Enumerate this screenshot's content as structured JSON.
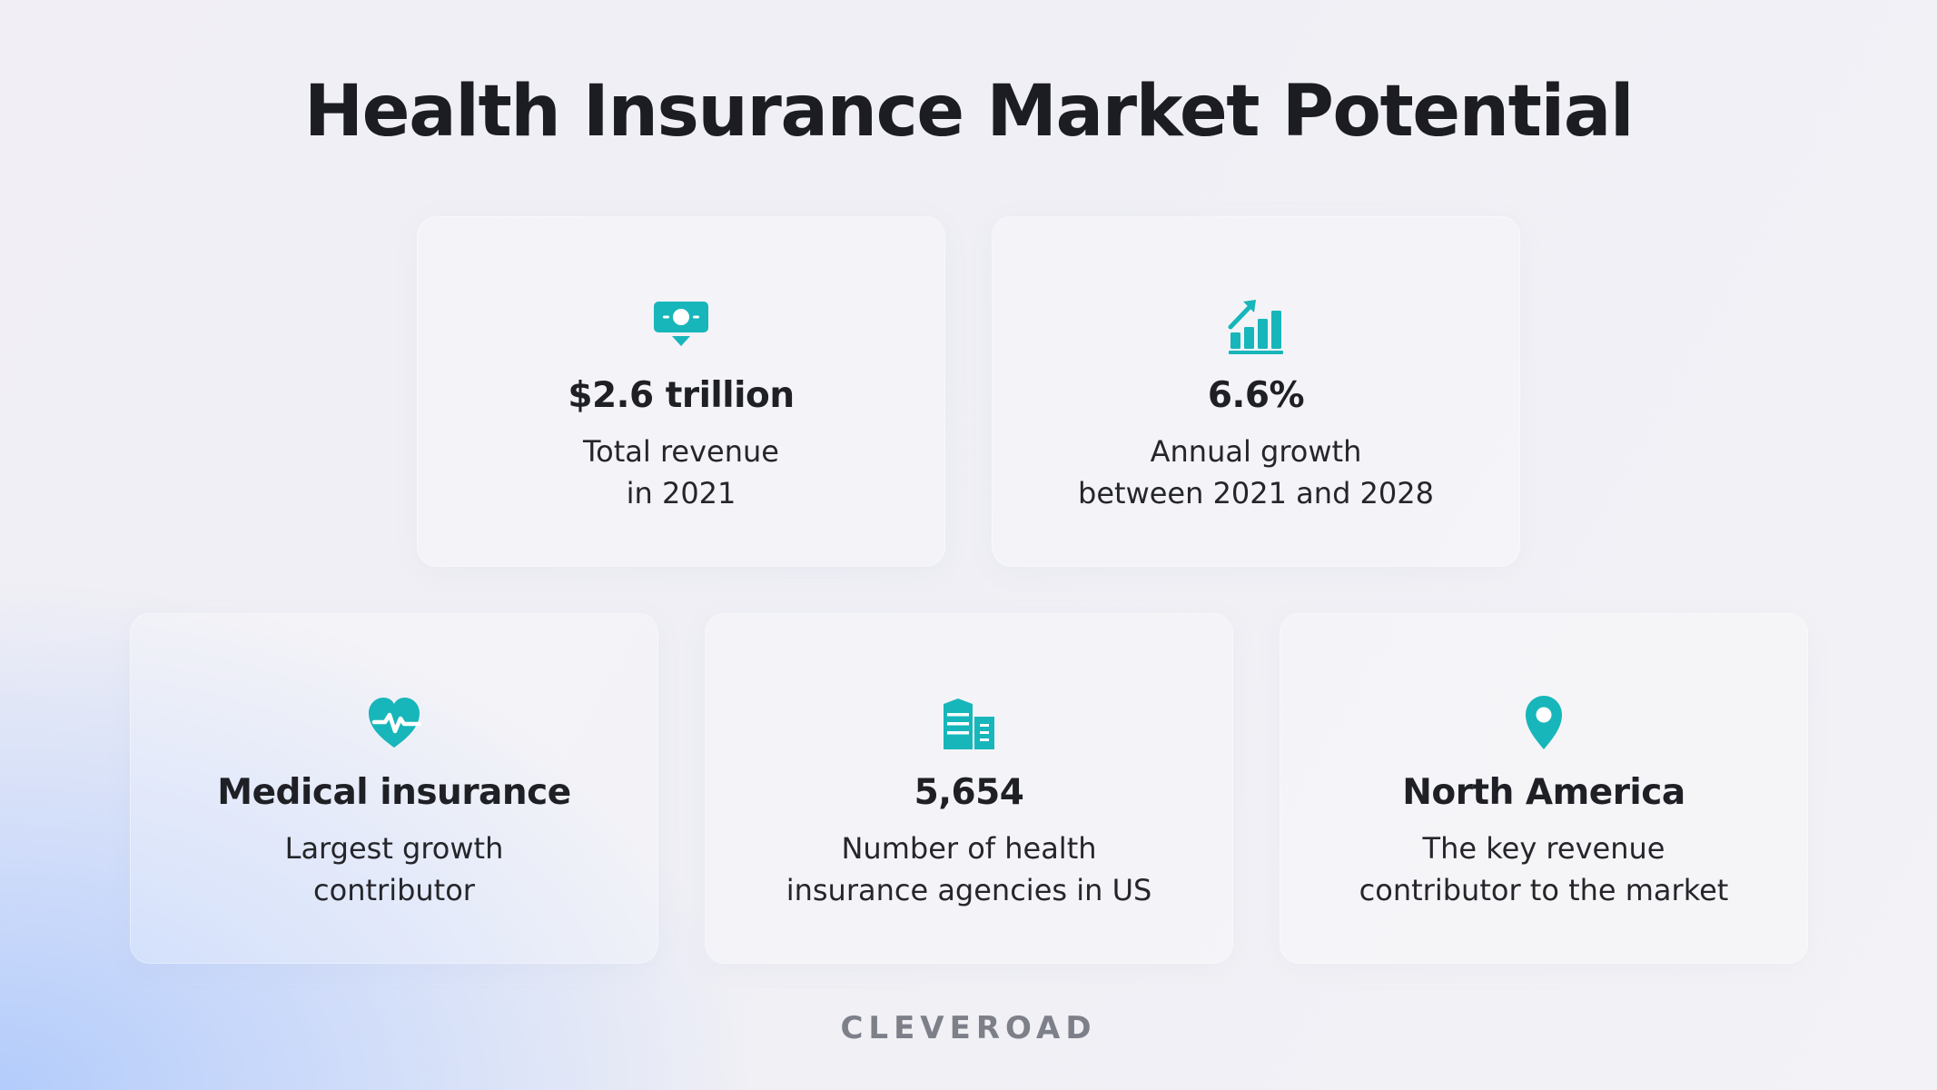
{
  "title": "Health Insurance Market Potential",
  "accent_color": "#17b6ba",
  "cards": [
    {
      "icon": "money-bill-icon",
      "title": "$2.6 trillion",
      "desc": [
        "Total revenue",
        "in 2021"
      ]
    },
    {
      "icon": "growth-chart-icon",
      "title": "6.6%",
      "desc": [
        "Annual growth",
        "between 2021 and 2028"
      ]
    },
    {
      "icon": "heart-pulse-icon",
      "title": "Medical insurance",
      "desc": [
        "Largest growth",
        "contributor"
      ]
    },
    {
      "icon": "buildings-icon",
      "title": "5,654",
      "desc": [
        "Number of health",
        "insurance agencies in US"
      ]
    },
    {
      "icon": "map-pin-icon",
      "title": "North America",
      "desc": [
        "The key revenue",
        "contributor to the market"
      ]
    }
  ],
  "brand": "CLEVEROAD"
}
